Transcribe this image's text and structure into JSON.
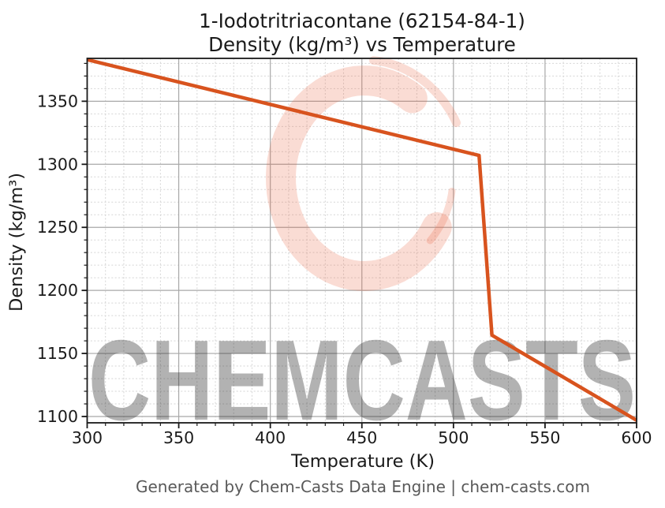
{
  "figure": {
    "title_line1": "1-Iodotritriacontane (62154-84-1)",
    "title_line2": "Density (kg/m³) vs Temperature",
    "footer": "Generated by Chem-Casts Data Engine | chem-casts.com"
  },
  "watermark": {
    "text": "CHEMCASTS",
    "logo": "c-swirl-brushstroke",
    "color": "#e8613d"
  },
  "chart_data": {
    "type": "line",
    "title": "1-Iodotritriacontane (62154-84-1) — Density (kg/m³) vs Temperature",
    "xlabel": "Temperature (K)",
    "ylabel": "Density (kg/m³)",
    "xlim": [
      300,
      600
    ],
    "ylim": [
      1095,
      1384
    ],
    "x_major_ticks": [
      300,
      350,
      400,
      450,
      500,
      550,
      600
    ],
    "y_major_ticks": [
      1100,
      1150,
      1200,
      1250,
      1300,
      1350
    ],
    "x_minor_step": 10,
    "y_minor_step": 10,
    "grid": true,
    "legend_position": "none",
    "line_color": "#d8531e",
    "major_grid_color": "#a8a8a8",
    "minor_grid_color": "#d5d5d5",
    "series": [
      {
        "name": "density",
        "x": [
          300,
          514,
          521,
          600
        ],
        "y": [
          1383,
          1307,
          1164.5,
          1097
        ]
      }
    ]
  }
}
